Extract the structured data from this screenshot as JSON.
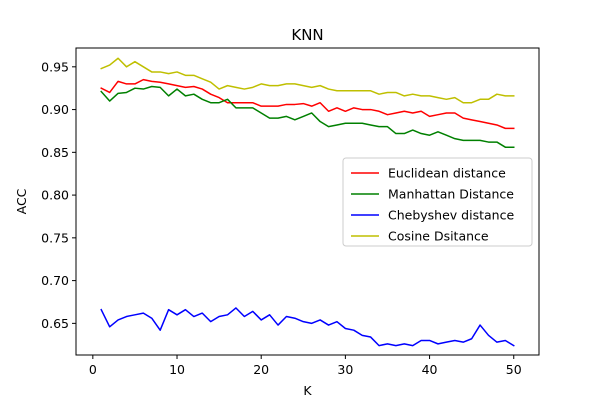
{
  "chart_data": {
    "type": "line",
    "title": "KNN",
    "xlabel": "K",
    "ylabel": "ACC",
    "xlim": [
      -2,
      53
    ],
    "ylim": [
      0.613,
      0.972
    ],
    "xticks": [
      0,
      10,
      20,
      30,
      40,
      50
    ],
    "yticks": [
      0.65,
      0.7,
      0.75,
      0.8,
      0.85,
      0.9,
      0.95
    ],
    "ytick_labels": [
      "0.65",
      "0.70",
      "0.75",
      "0.80",
      "0.85",
      "0.90",
      "0.95"
    ],
    "grid": false,
    "legend_position": "center-right",
    "x": [
      1,
      2,
      3,
      4,
      5,
      6,
      7,
      8,
      9,
      10,
      11,
      12,
      13,
      14,
      15,
      16,
      17,
      18,
      19,
      20,
      21,
      22,
      23,
      24,
      25,
      26,
      27,
      28,
      29,
      30,
      31,
      32,
      33,
      34,
      35,
      36,
      37,
      38,
      39,
      40,
      41,
      42,
      43,
      44,
      45,
      46,
      47,
      48,
      49,
      50
    ],
    "series": [
      {
        "name": "Euclidean distance",
        "color": "#ff0000",
        "values": [
          0.925,
          0.92,
          0.933,
          0.93,
          0.93,
          0.935,
          0.933,
          0.932,
          0.93,
          0.928,
          0.926,
          0.927,
          0.924,
          0.918,
          0.914,
          0.908,
          0.908,
          0.908,
          0.908,
          0.904,
          0.904,
          0.904,
          0.906,
          0.906,
          0.907,
          0.904,
          0.908,
          0.898,
          0.902,
          0.898,
          0.902,
          0.9,
          0.9,
          0.898,
          0.894,
          0.896,
          0.898,
          0.896,
          0.898,
          0.892,
          0.894,
          0.896,
          0.896,
          0.89,
          0.888,
          0.886,
          0.884,
          0.882,
          0.878,
          0.878
        ]
      },
      {
        "name": "Manhattan Distance",
        "color": "#008000",
        "values": [
          0.921,
          0.91,
          0.919,
          0.92,
          0.925,
          0.924,
          0.927,
          0.926,
          0.916,
          0.924,
          0.916,
          0.918,
          0.912,
          0.908,
          0.908,
          0.912,
          0.902,
          0.902,
          0.902,
          0.896,
          0.89,
          0.89,
          0.892,
          0.888,
          0.892,
          0.896,
          0.886,
          0.88,
          0.882,
          0.884,
          0.884,
          0.884,
          0.882,
          0.88,
          0.88,
          0.872,
          0.872,
          0.876,
          0.872,
          0.87,
          0.874,
          0.87,
          0.866,
          0.864,
          0.864,
          0.864,
          0.862,
          0.862,
          0.856,
          0.856
        ]
      },
      {
        "name": "Chebyshev distance",
        "color": "#0000ff",
        "values": [
          0.666,
          0.646,
          0.654,
          0.658,
          0.66,
          0.662,
          0.656,
          0.642,
          0.666,
          0.66,
          0.666,
          0.658,
          0.662,
          0.652,
          0.658,
          0.66,
          0.668,
          0.658,
          0.664,
          0.654,
          0.66,
          0.648,
          0.658,
          0.656,
          0.652,
          0.65,
          0.654,
          0.648,
          0.652,
          0.644,
          0.642,
          0.636,
          0.634,
          0.624,
          0.626,
          0.624,
          0.626,
          0.624,
          0.63,
          0.63,
          0.626,
          0.628,
          0.63,
          0.628,
          0.632,
          0.648,
          0.636,
          0.628,
          0.63,
          0.624
        ]
      },
      {
        "name": "Cosine Dsitance",
        "color": "#bfbf00",
        "values": [
          0.948,
          0.952,
          0.96,
          0.95,
          0.956,
          0.95,
          0.944,
          0.944,
          0.942,
          0.944,
          0.94,
          0.94,
          0.936,
          0.932,
          0.924,
          0.928,
          0.926,
          0.924,
          0.926,
          0.93,
          0.928,
          0.928,
          0.93,
          0.93,
          0.928,
          0.926,
          0.928,
          0.924,
          0.922,
          0.922,
          0.922,
          0.922,
          0.922,
          0.918,
          0.92,
          0.92,
          0.916,
          0.918,
          0.916,
          0.916,
          0.914,
          0.912,
          0.914,
          0.908,
          0.908,
          0.912,
          0.912,
          0.918,
          0.916,
          0.916
        ]
      }
    ]
  }
}
